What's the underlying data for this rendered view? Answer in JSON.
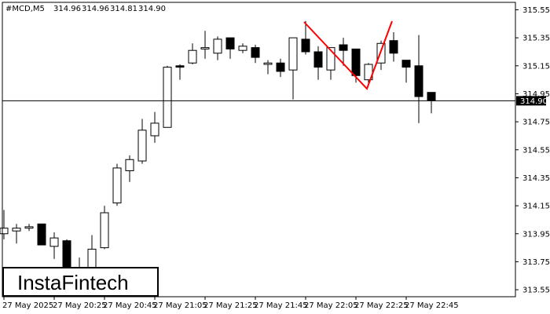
{
  "chart_data": {
    "type": "candlestick",
    "header": {
      "symbol": "#MCD,M5",
      "ohlc": [
        "314.96",
        "314.96",
        "314.81",
        "314.90"
      ]
    },
    "watermark": "InstaFintech",
    "categories": [
      "27 May 2025",
      null,
      null,
      null,
      "27 May 20:25",
      null,
      null,
      null,
      "27 May 20:45",
      null,
      null,
      null,
      "27 May 21:05",
      null,
      null,
      null,
      "27 May 21:25",
      null,
      null,
      null,
      "27 May 21:45",
      null,
      null,
      null,
      "27 May 22:05",
      null,
      null,
      null,
      "27 May 22:25",
      null,
      null,
      null,
      "27 May 22:45",
      null,
      null
    ],
    "open": [
      313.95,
      313.97,
      313.99,
      314.02,
      313.86,
      313.9,
      313.62,
      313.71,
      313.85,
      314.17,
      314.4,
      314.47,
      314.65,
      314.71,
      315.15,
      315.17,
      315.27,
      315.24,
      315.35,
      315.26,
      315.28,
      315.16,
      315.17,
      315.12,
      315.34,
      315.25,
      315.12,
      315.3,
      315.27,
      315.05,
      315.17,
      315.33,
      315.19,
      315.15,
      314.96
    ],
    "high": [
      314.12,
      314.02,
      314.02,
      314.02,
      313.96,
      313.91,
      313.78,
      313.94,
      314.15,
      314.45,
      314.51,
      314.77,
      314.82,
      315.15,
      315.16,
      315.31,
      315.4,
      315.36,
      315.35,
      315.31,
      315.3,
      315.19,
      315.2,
      315.35,
      315.47,
      315.29,
      315.28,
      315.35,
      315.27,
      315.17,
      315.33,
      315.39,
      315.19,
      315.37,
      314.96
    ],
    "low": [
      313.91,
      313.88,
      313.97,
      313.87,
      313.77,
      313.55,
      313.58,
      313.61,
      313.84,
      314.15,
      314.32,
      314.45,
      314.6,
      314.71,
      315.05,
      315.16,
      315.2,
      315.19,
      315.2,
      315.24,
      315.17,
      315.09,
      315.07,
      314.91,
      315.23,
      315.05,
      315.05,
      315.15,
      315.03,
      315.01,
      315.12,
      315.18,
      315.03,
      314.74,
      314.81
    ],
    "close": [
      313.99,
      313.99,
      314.0,
      313.87,
      313.92,
      313.6,
      313.7,
      313.84,
      314.1,
      314.42,
      314.48,
      314.69,
      314.74,
      315.14,
      315.14,
      315.26,
      315.28,
      315.34,
      315.27,
      315.29,
      315.21,
      315.17,
      315.11,
      315.35,
      315.25,
      315.14,
      315.28,
      315.26,
      315.08,
      315.16,
      315.31,
      315.24,
      315.14,
      314.93,
      314.9
    ],
    "ylim": [
      313.5,
      315.62
    ],
    "yticks": [
      315.55,
      315.35,
      315.15,
      314.95,
      314.75,
      314.55,
      314.35,
      314.15,
      313.95,
      313.75,
      313.55
    ],
    "current_price": {
      "value": 314.9,
      "label": "314.90"
    },
    "bull_color": "#ffffff",
    "bear_color": "#000000",
    "pattern_color": "#ff0000"
  }
}
